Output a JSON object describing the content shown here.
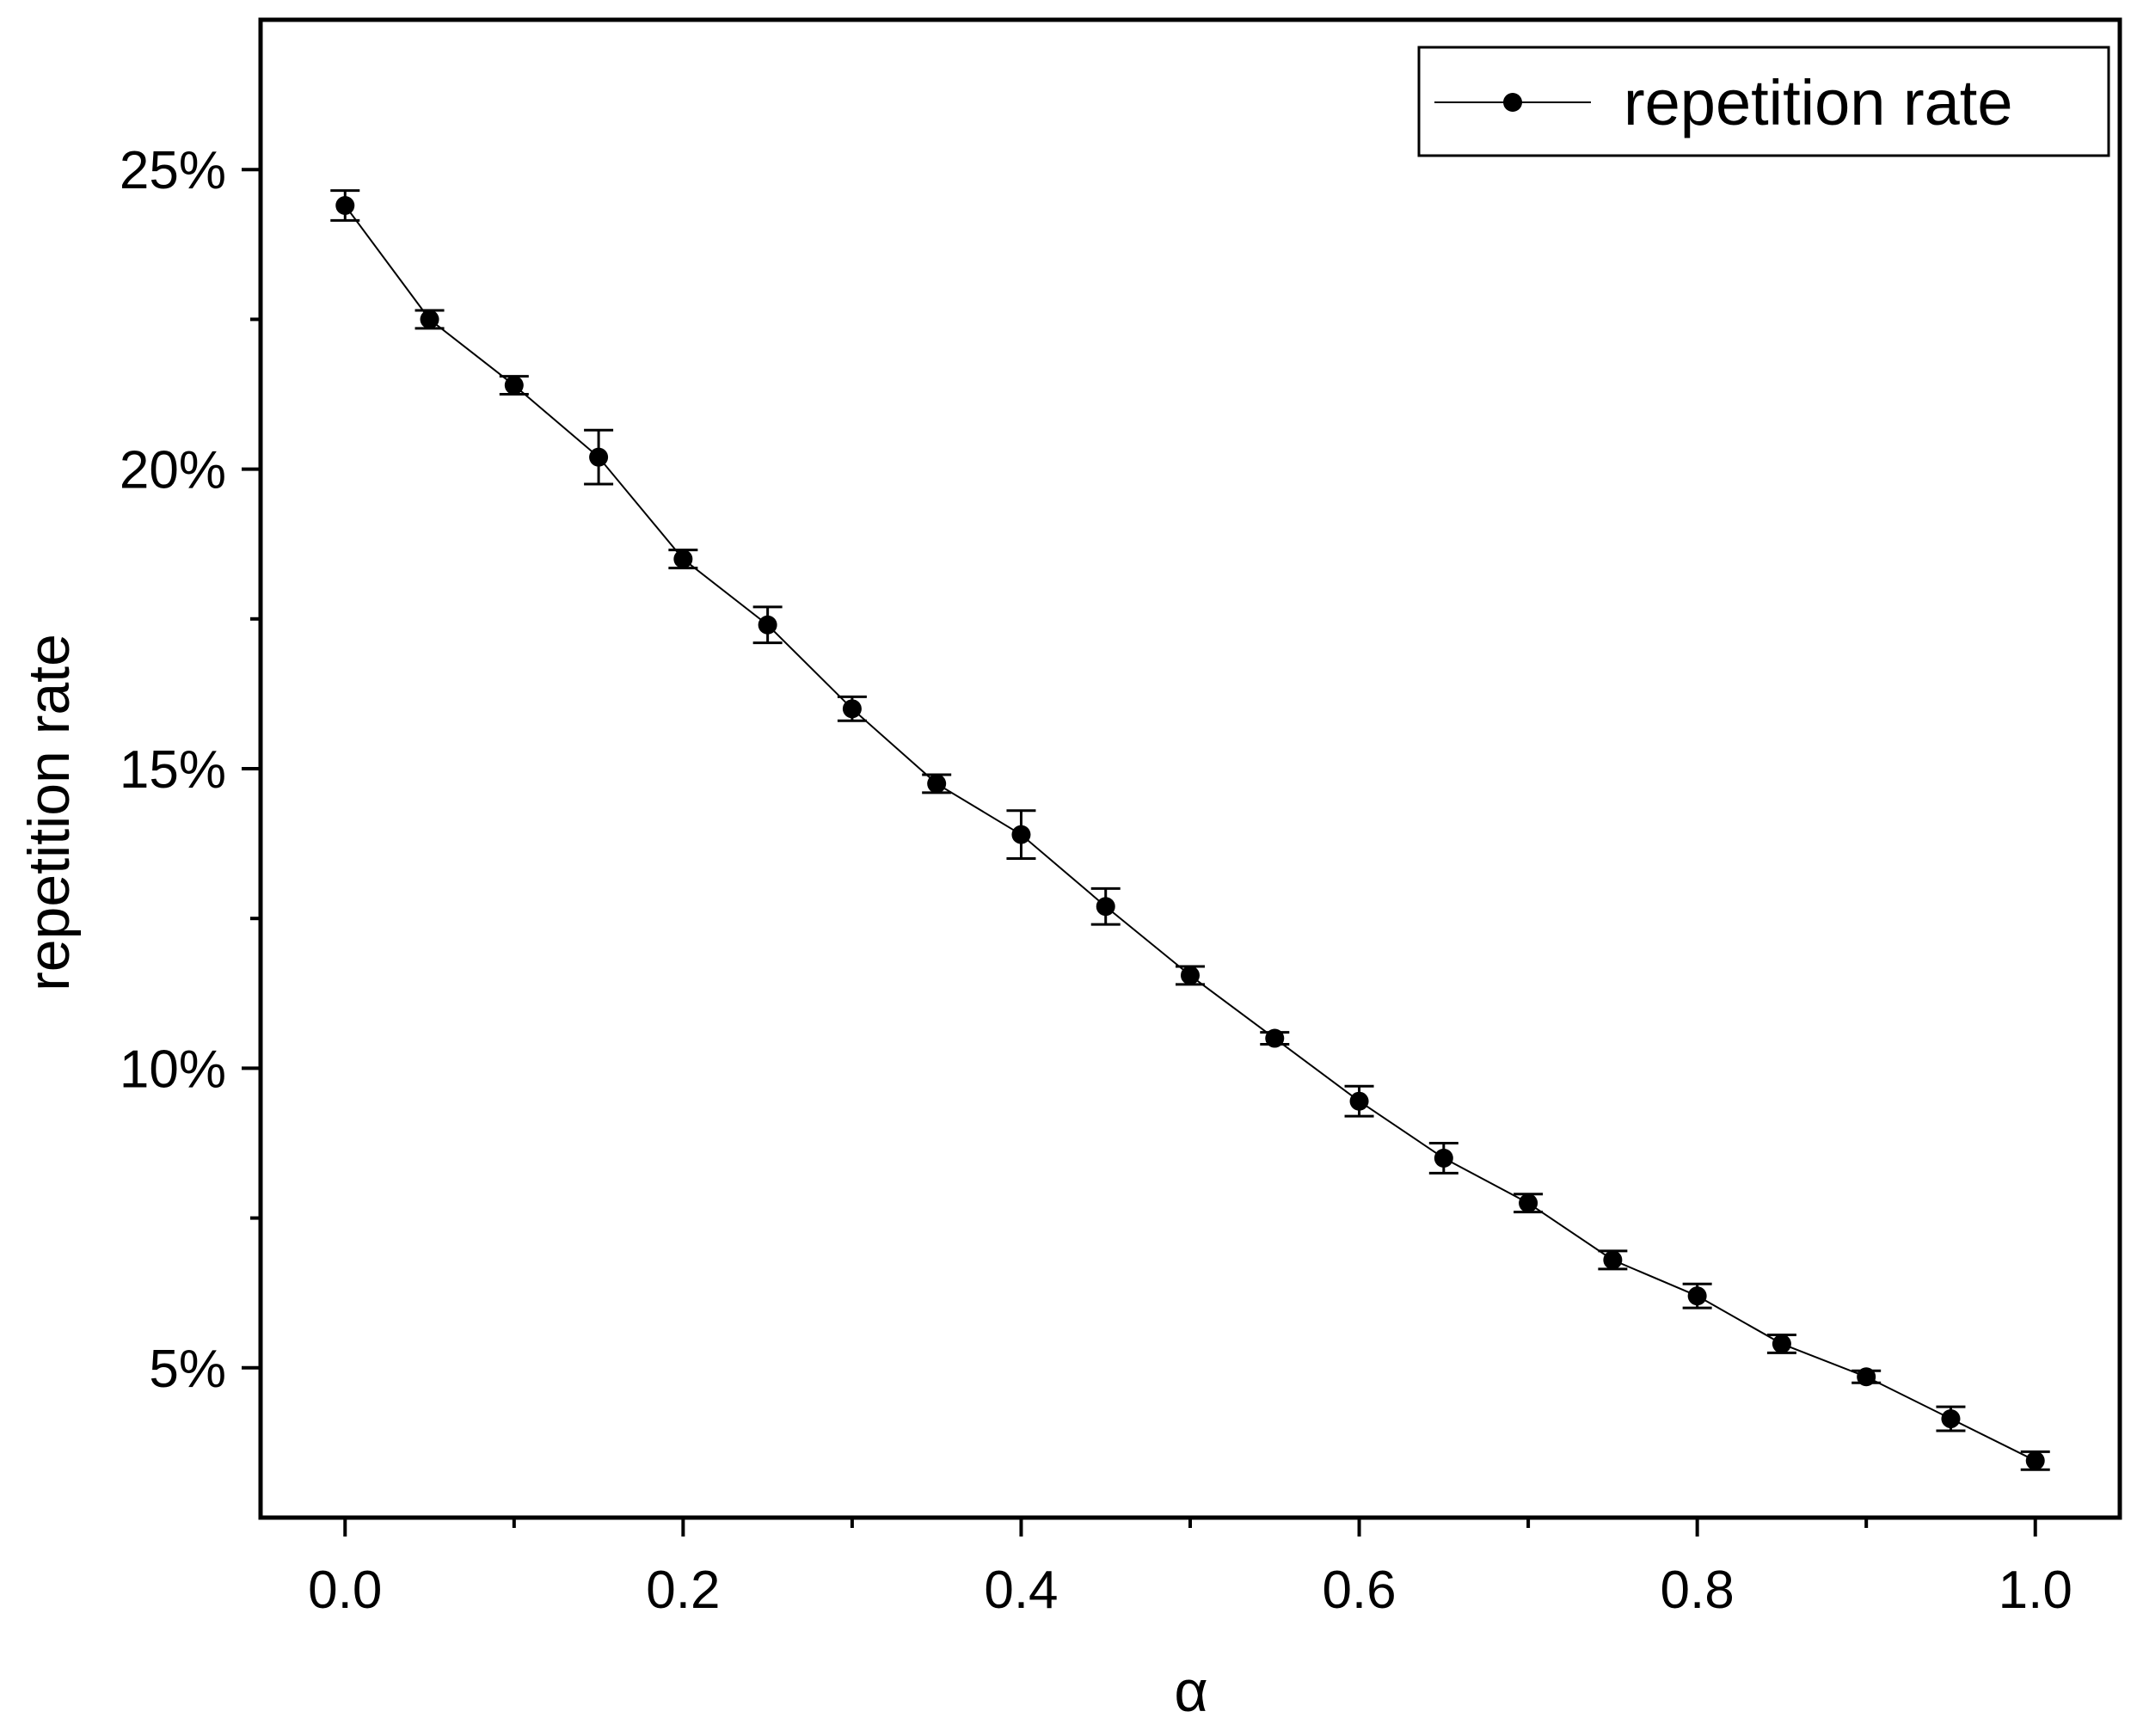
{
  "chart_data": {
    "type": "line",
    "xlabel": "α",
    "ylabel": "repetition rate",
    "xlim": [
      -0.05,
      1.05
    ],
    "ylim": [
      2.5,
      27.5
    ],
    "x_ticks": [
      0.0,
      0.2,
      0.4,
      0.6,
      0.8,
      1.0
    ],
    "x_tick_labels": [
      "0.0",
      "0.2",
      "0.4",
      "0.6",
      "0.8",
      "1.0"
    ],
    "y_ticks": [
      5,
      10,
      15,
      20,
      25
    ],
    "y_tick_labels": [
      "5%",
      "10%",
      "15%",
      "20%",
      "25%"
    ],
    "y_unit": "%",
    "legend_position": "top-right",
    "grid": false,
    "series": [
      {
        "name": "repetition rate",
        "color": "#000000",
        "marker": "circle",
        "x": [
          0.0,
          0.05,
          0.1,
          0.15,
          0.2,
          0.25,
          0.3,
          0.35,
          0.4,
          0.45,
          0.5,
          0.55,
          0.6,
          0.65,
          0.7,
          0.75,
          0.8,
          0.85,
          0.9,
          0.95,
          1.0
        ],
        "y": [
          24.4,
          22.5,
          21.4,
          20.2,
          18.5,
          17.4,
          16.0,
          14.75,
          13.9,
          12.7,
          11.55,
          10.5,
          9.45,
          8.5,
          7.75,
          6.8,
          6.2,
          5.4,
          4.85,
          4.15,
          3.45
        ],
        "error": [
          0.25,
          0.15,
          0.15,
          0.45,
          0.15,
          0.3,
          0.2,
          0.15,
          0.4,
          0.3,
          0.15,
          0.1,
          0.25,
          0.25,
          0.15,
          0.15,
          0.2,
          0.15,
          0.1,
          0.2,
          0.15
        ]
      }
    ]
  }
}
